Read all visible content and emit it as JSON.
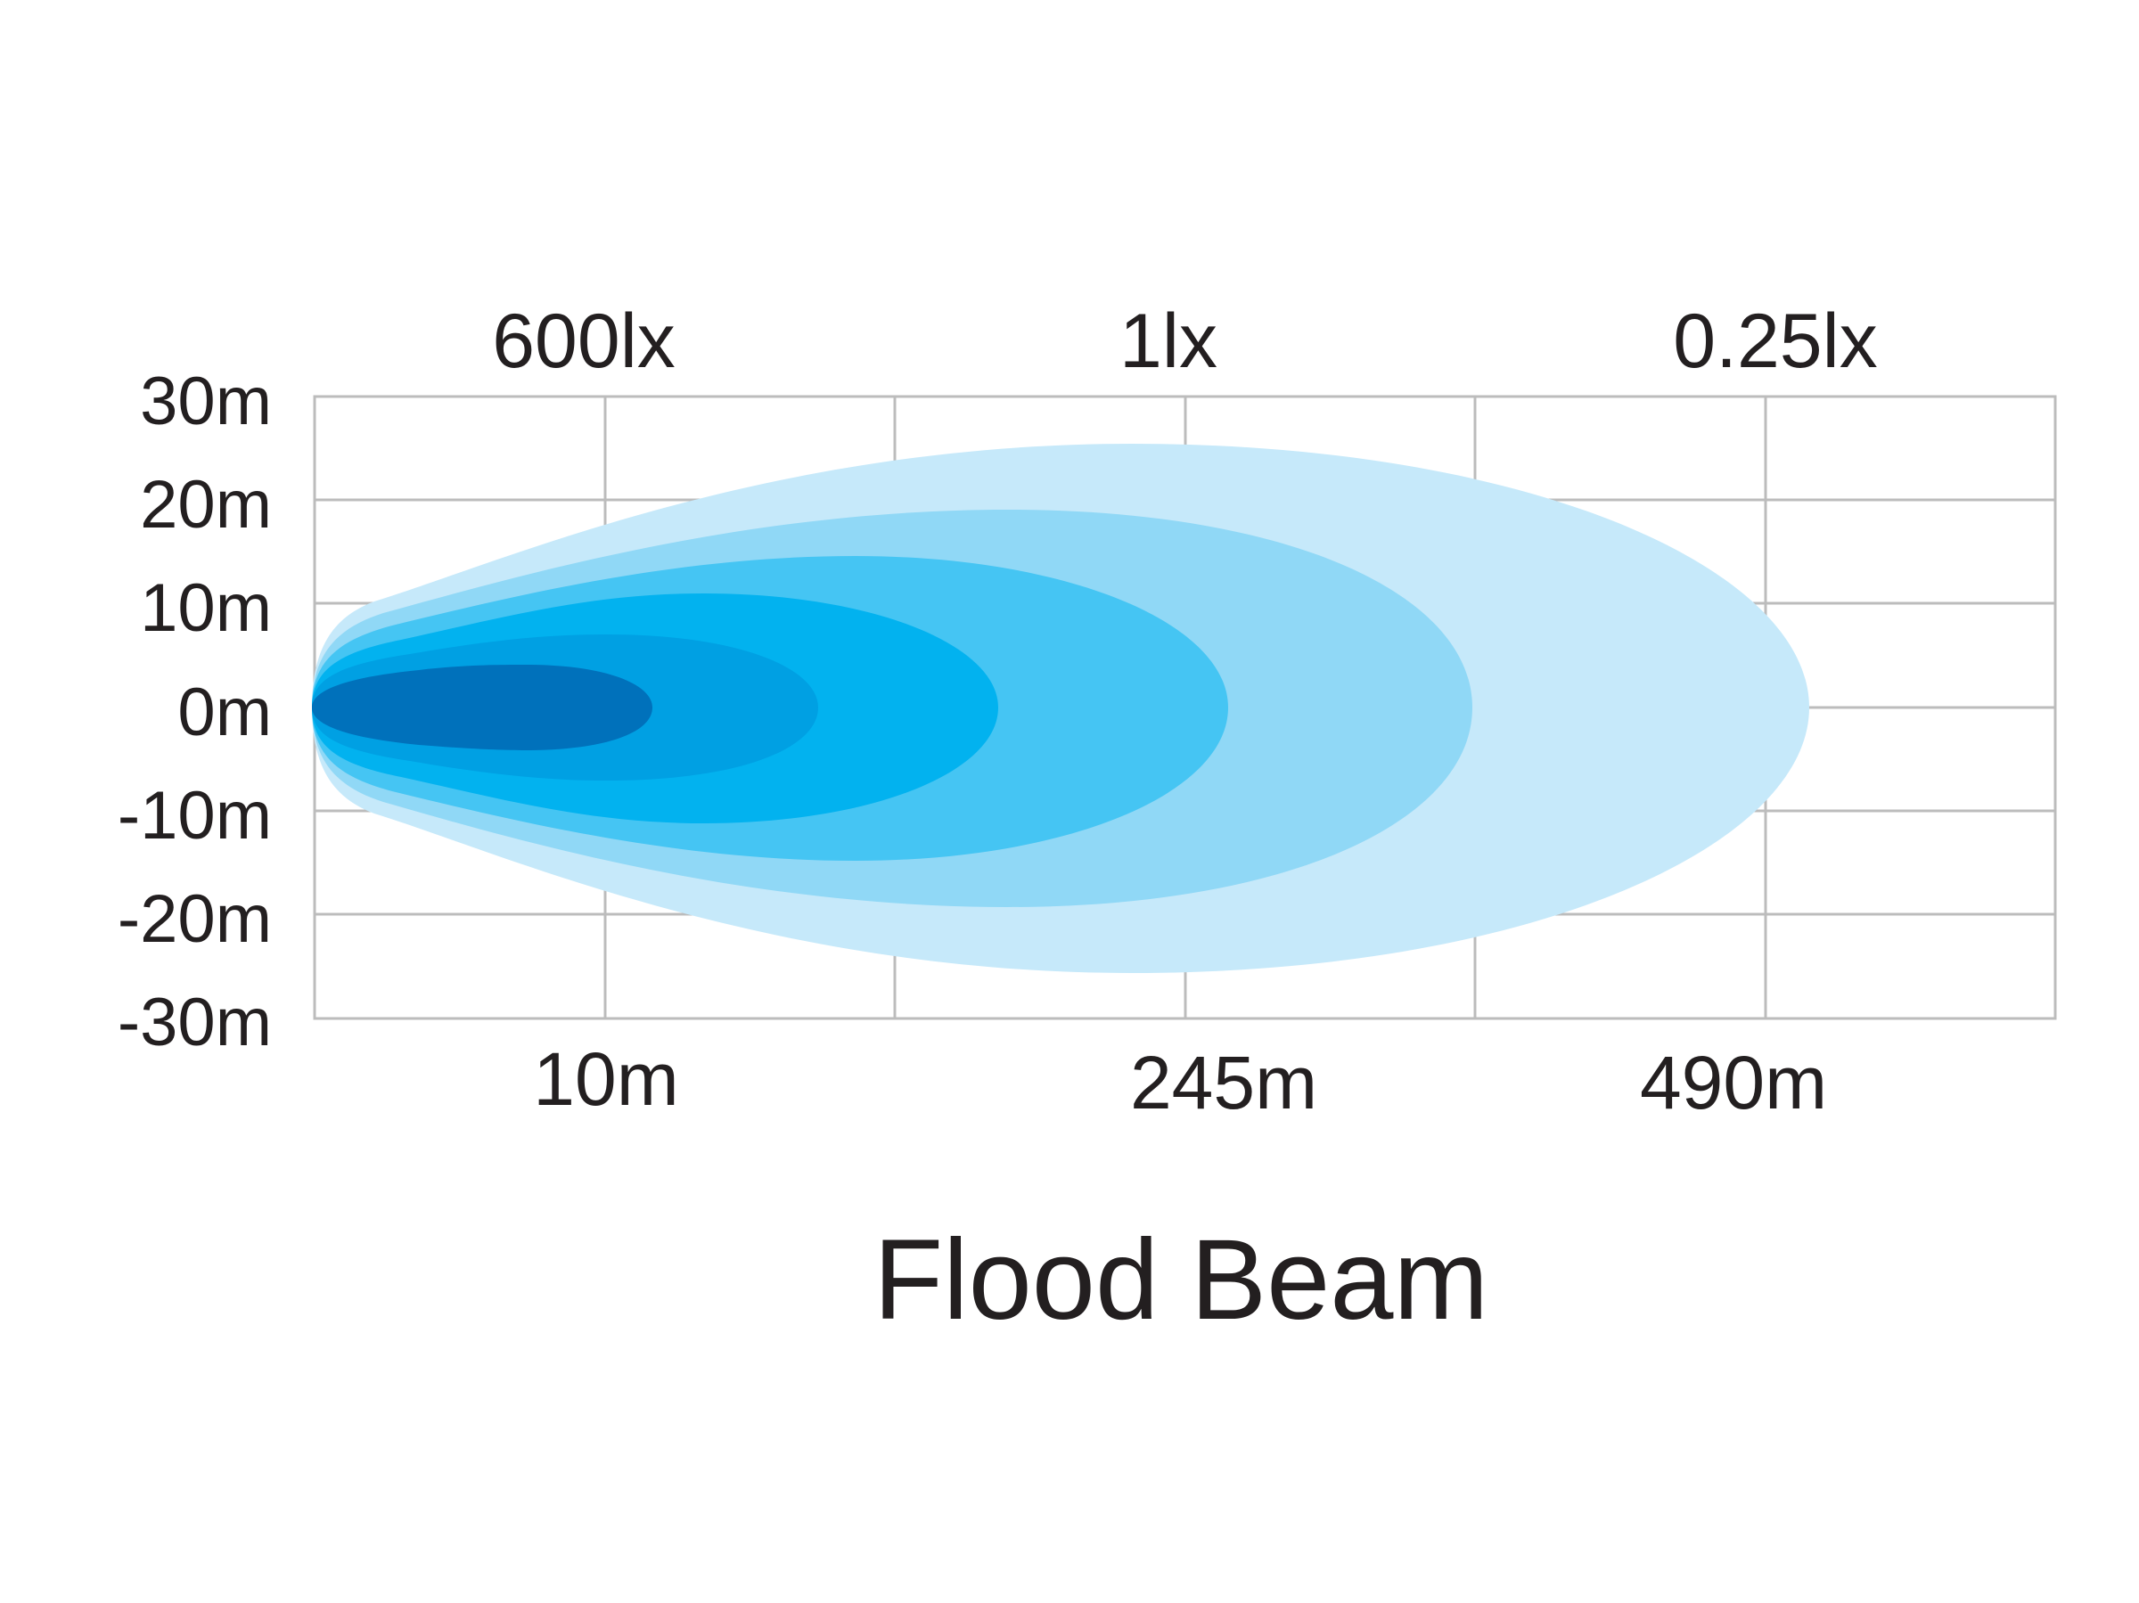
{
  "title": "Flood Beam",
  "y_axis_labels": [
    "30m",
    "20m",
    "10m",
    "0m",
    "-10m",
    "-20m",
    "-30m"
  ],
  "lux_labels": [
    "600lx",
    "1lx",
    "0.25lx"
  ],
  "distance_labels": [
    "10m",
    "245m",
    "490m"
  ],
  "beam_colors": [
    "#c6e9fa",
    "#90d8f6",
    "#45c5f3",
    "#02b2ef",
    "#00a0e3",
    "#0071bb"
  ],
  "grid_color": "#bcbcbc"
}
